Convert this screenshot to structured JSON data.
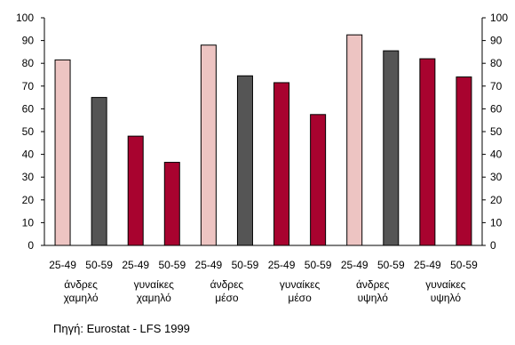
{
  "chart_data": {
    "type": "bar",
    "title": "",
    "xlabel": "",
    "ylabel": "",
    "ylim": [
      0,
      100
    ],
    "yticks": [
      0,
      10,
      20,
      30,
      40,
      50,
      60,
      70,
      80,
      90,
      100
    ],
    "right_axis": true,
    "grid": false,
    "legend": "none",
    "categories": [
      "25-49",
      "50-59",
      "25-49",
      "50-59",
      "25-49",
      "50-59",
      "25-49",
      "50-59",
      "25-49",
      "50-59",
      "25-49",
      "50-59"
    ],
    "values": [
      81.5,
      65,
      48,
      36.5,
      88,
      74.5,
      71.5,
      57.5,
      92.5,
      85.5,
      82,
      74
    ],
    "bar_colors": [
      "#EDC4C2",
      "#555555",
      "#A8032F",
      "#A8032F",
      "#EDC4C2",
      "#555555",
      "#A8032F",
      "#A8032F",
      "#EDC4C2",
      "#555555",
      "#A8032F",
      "#A8032F"
    ],
    "groups": [
      {
        "line1": "άνδρες",
        "line2": "χαμηλό"
      },
      {
        "line1": "γυναίκες",
        "line2": "χαμηλό"
      },
      {
        "line1": "άνδρες",
        "line2": "μέσο"
      },
      {
        "line1": "γυναίκες",
        "line2": "μέσο"
      },
      {
        "line1": "άνδρες",
        "line2": "υψηλό"
      },
      {
        "line1": "γυναίκες",
        "line2": "υψηλό"
      }
    ]
  },
  "source": "Πηγή: Eurostat - LFS 1999"
}
